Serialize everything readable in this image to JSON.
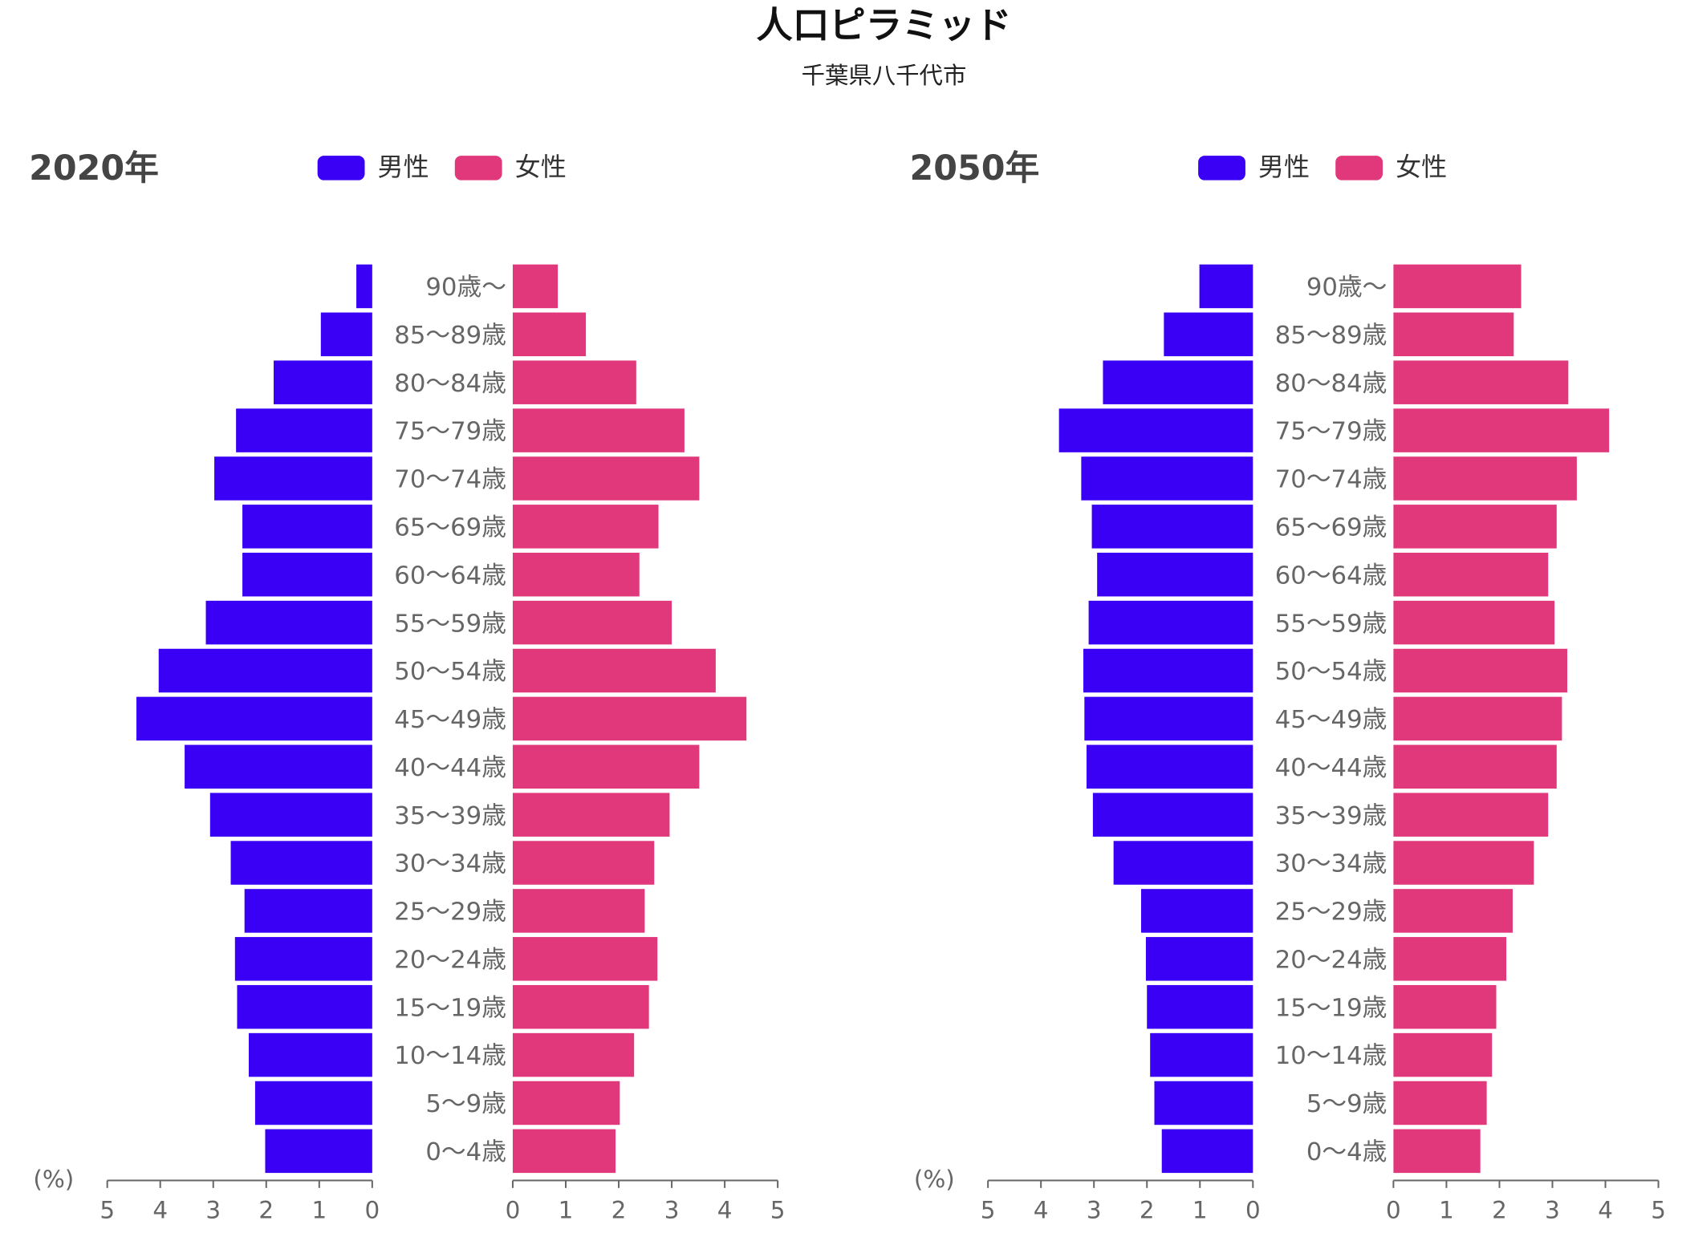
{
  "title": "人口ピラミッド",
  "subtitle": "千葉県八千代市",
  "chart_data": [
    {
      "type": "pyramid",
      "title": "2020年",
      "xlabel": "(%)",
      "categories": [
        "90歳〜",
        "85〜89歳",
        "80〜84歳",
        "75〜79歳",
        "70〜74歳",
        "65〜69歳",
        "60〜64歳",
        "55〜59歳",
        "50〜54歳",
        "45〜49歳",
        "40〜44歳",
        "35〜39歳",
        "30〜34歳",
        "25〜29歳",
        "20〜24歳",
        "15〜19歳",
        "10〜14歳",
        "5〜9歳",
        "0〜4歳"
      ],
      "series": [
        {
          "name": "男性",
          "color": "#3a00f5",
          "values": [
            0.3,
            0.97,
            1.86,
            2.57,
            2.98,
            2.45,
            2.45,
            3.14,
            4.03,
            4.45,
            3.54,
            3.06,
            2.67,
            2.41,
            2.59,
            2.55,
            2.33,
            2.21,
            2.02
          ]
        },
        {
          "name": "女性",
          "color": "#e0387a",
          "values": [
            0.85,
            1.38,
            2.33,
            3.24,
            3.52,
            2.75,
            2.39,
            3.0,
            3.83,
            4.41,
            3.52,
            2.96,
            2.67,
            2.49,
            2.73,
            2.57,
            2.29,
            2.02,
            1.94
          ]
        }
      ],
      "xlim": [
        0,
        5
      ],
      "xticks": [
        0,
        1,
        2,
        3,
        4,
        5
      ]
    },
    {
      "type": "pyramid",
      "title": "2050年",
      "xlabel": "(%)",
      "categories": [
        "90歳〜",
        "85〜89歳",
        "80〜84歳",
        "75〜79歳",
        "70〜74歳",
        "65〜69歳",
        "60〜64歳",
        "55〜59歳",
        "50〜54歳",
        "45〜49歳",
        "40〜44歳",
        "35〜39歳",
        "30〜34歳",
        "25〜29歳",
        "20〜24歳",
        "15〜19歳",
        "10〜14歳",
        "5〜9歳",
        "0〜4歳"
      ],
      "series": [
        {
          "name": "男性",
          "color": "#3a00f5",
          "values": [
            1.01,
            1.68,
            2.83,
            3.66,
            3.24,
            3.04,
            2.94,
            3.1,
            3.2,
            3.18,
            3.14,
            3.02,
            2.63,
            2.11,
            2.02,
            2.0,
            1.94,
            1.86,
            1.72
          ]
        },
        {
          "name": "女性",
          "color": "#e0387a",
          "values": [
            2.41,
            2.27,
            3.3,
            4.07,
            3.46,
            3.08,
            2.92,
            3.04,
            3.28,
            3.18,
            3.08,
            2.92,
            2.65,
            2.25,
            2.13,
            1.94,
            1.86,
            1.76,
            1.64
          ]
        }
      ],
      "xlim": [
        0,
        5
      ],
      "xticks": [
        0,
        1,
        2,
        3,
        4,
        5
      ]
    }
  ]
}
